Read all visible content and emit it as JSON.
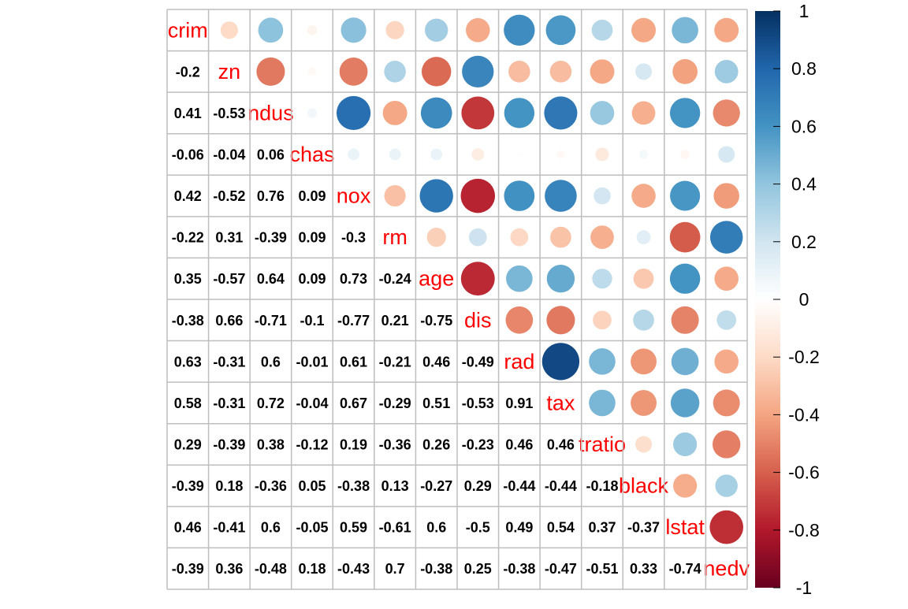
{
  "chart_data": {
    "type": "heatmap",
    "style": "correlation plot: circles in upper triangle, numbers in lower triangle, variable names on diagonal",
    "variables": [
      "crim",
      "zn",
      "indus",
      "chas",
      "nox",
      "rm",
      "age",
      "dis",
      "rad",
      "tax",
      "ptratio",
      "black",
      "lstat",
      "medv"
    ],
    "diagonal_labels": [
      "crim",
      "zn",
      "ndus",
      "chas",
      "nox",
      "rm",
      "age",
      "dis",
      "rad",
      "tax",
      "tratio",
      "black",
      "lstat",
      "nedv"
    ],
    "matrix": [
      [
        1,
        -0.2,
        0.41,
        -0.06,
        0.42,
        -0.22,
        0.35,
        -0.38,
        0.63,
        0.58,
        0.29,
        -0.39,
        0.46,
        -0.39
      ],
      [
        -0.2,
        1,
        -0.53,
        -0.04,
        -0.52,
        0.31,
        -0.57,
        0.66,
        -0.31,
        -0.31,
        -0.39,
        0.18,
        -0.41,
        0.36
      ],
      [
        0.41,
        -0.53,
        1,
        0.06,
        0.76,
        -0.39,
        0.64,
        -0.71,
        0.6,
        0.72,
        0.38,
        -0.36,
        0.6,
        -0.48
      ],
      [
        -0.06,
        -0.04,
        0.06,
        1,
        0.09,
        0.09,
        0.09,
        -0.1,
        -0.01,
        -0.04,
        -0.12,
        0.05,
        -0.05,
        0.18
      ],
      [
        0.42,
        -0.52,
        0.76,
        0.09,
        1,
        -0.3,
        0.73,
        -0.77,
        0.61,
        0.67,
        0.19,
        -0.38,
        0.59,
        -0.43
      ],
      [
        -0.22,
        0.31,
        -0.39,
        0.09,
        -0.3,
        1,
        -0.24,
        0.21,
        -0.21,
        -0.29,
        -0.36,
        0.13,
        -0.61,
        0.7
      ],
      [
        0.35,
        -0.57,
        0.64,
        0.09,
        0.73,
        -0.24,
        1,
        -0.75,
        0.46,
        0.51,
        0.26,
        -0.27,
        0.6,
        -0.38
      ],
      [
        -0.38,
        0.66,
        -0.71,
        -0.1,
        -0.77,
        0.21,
        -0.75,
        1,
        -0.49,
        -0.53,
        -0.23,
        0.29,
        -0.5,
        0.25
      ],
      [
        0.63,
        -0.31,
        0.6,
        -0.01,
        0.61,
        -0.21,
        0.46,
        -0.49,
        1,
        0.91,
        0.46,
        -0.44,
        0.49,
        -0.38
      ],
      [
        0.58,
        -0.31,
        0.72,
        -0.04,
        0.67,
        -0.29,
        0.51,
        -0.53,
        0.91,
        1,
        0.46,
        -0.44,
        0.54,
        -0.47
      ],
      [
        0.29,
        -0.39,
        0.38,
        -0.12,
        0.19,
        -0.36,
        0.26,
        -0.23,
        0.46,
        0.46,
        1,
        -0.18,
        0.37,
        -0.51
      ],
      [
        -0.39,
        0.18,
        -0.36,
        0.05,
        -0.38,
        0.13,
        -0.27,
        0.29,
        -0.44,
        -0.44,
        -0.18,
        1,
        -0.37,
        0.33
      ],
      [
        0.46,
        -0.41,
        0.6,
        -0.05,
        0.59,
        -0.61,
        0.6,
        -0.5,
        0.49,
        0.54,
        0.37,
        -0.37,
        1,
        -0.74
      ],
      [
        -0.39,
        0.36,
        -0.48,
        0.18,
        -0.43,
        0.7,
        -0.38,
        0.25,
        -0.38,
        -0.47,
        -0.51,
        0.33,
        -0.74,
        1
      ]
    ],
    "colorbar": {
      "range": [
        -1,
        1
      ],
      "ticks": [
        1,
        0.8,
        0.6,
        0.4,
        0.2,
        0,
        -0.2,
        -0.4,
        -0.6,
        -0.8,
        -1
      ],
      "tick_labels": [
        "1",
        "0.8",
        "0.6",
        "0.4",
        "0.2",
        "0",
        "-0.2",
        "-0.4",
        "-0.6",
        "-0.8",
        "-1"
      ]
    },
    "colors": {
      "palette": [
        "#67001F",
        "#B2182B",
        "#D6604D",
        "#F4A582",
        "#FDDBC7",
        "#FFFFFF",
        "#D1E5F0",
        "#92C5DE",
        "#4393C3",
        "#2166AC",
        "#053061"
      ],
      "diagonal_text": "#ff0000",
      "number_text": "#000000",
      "grid": "#bebebe"
    },
    "grid": true,
    "legend_placement": "right"
  }
}
